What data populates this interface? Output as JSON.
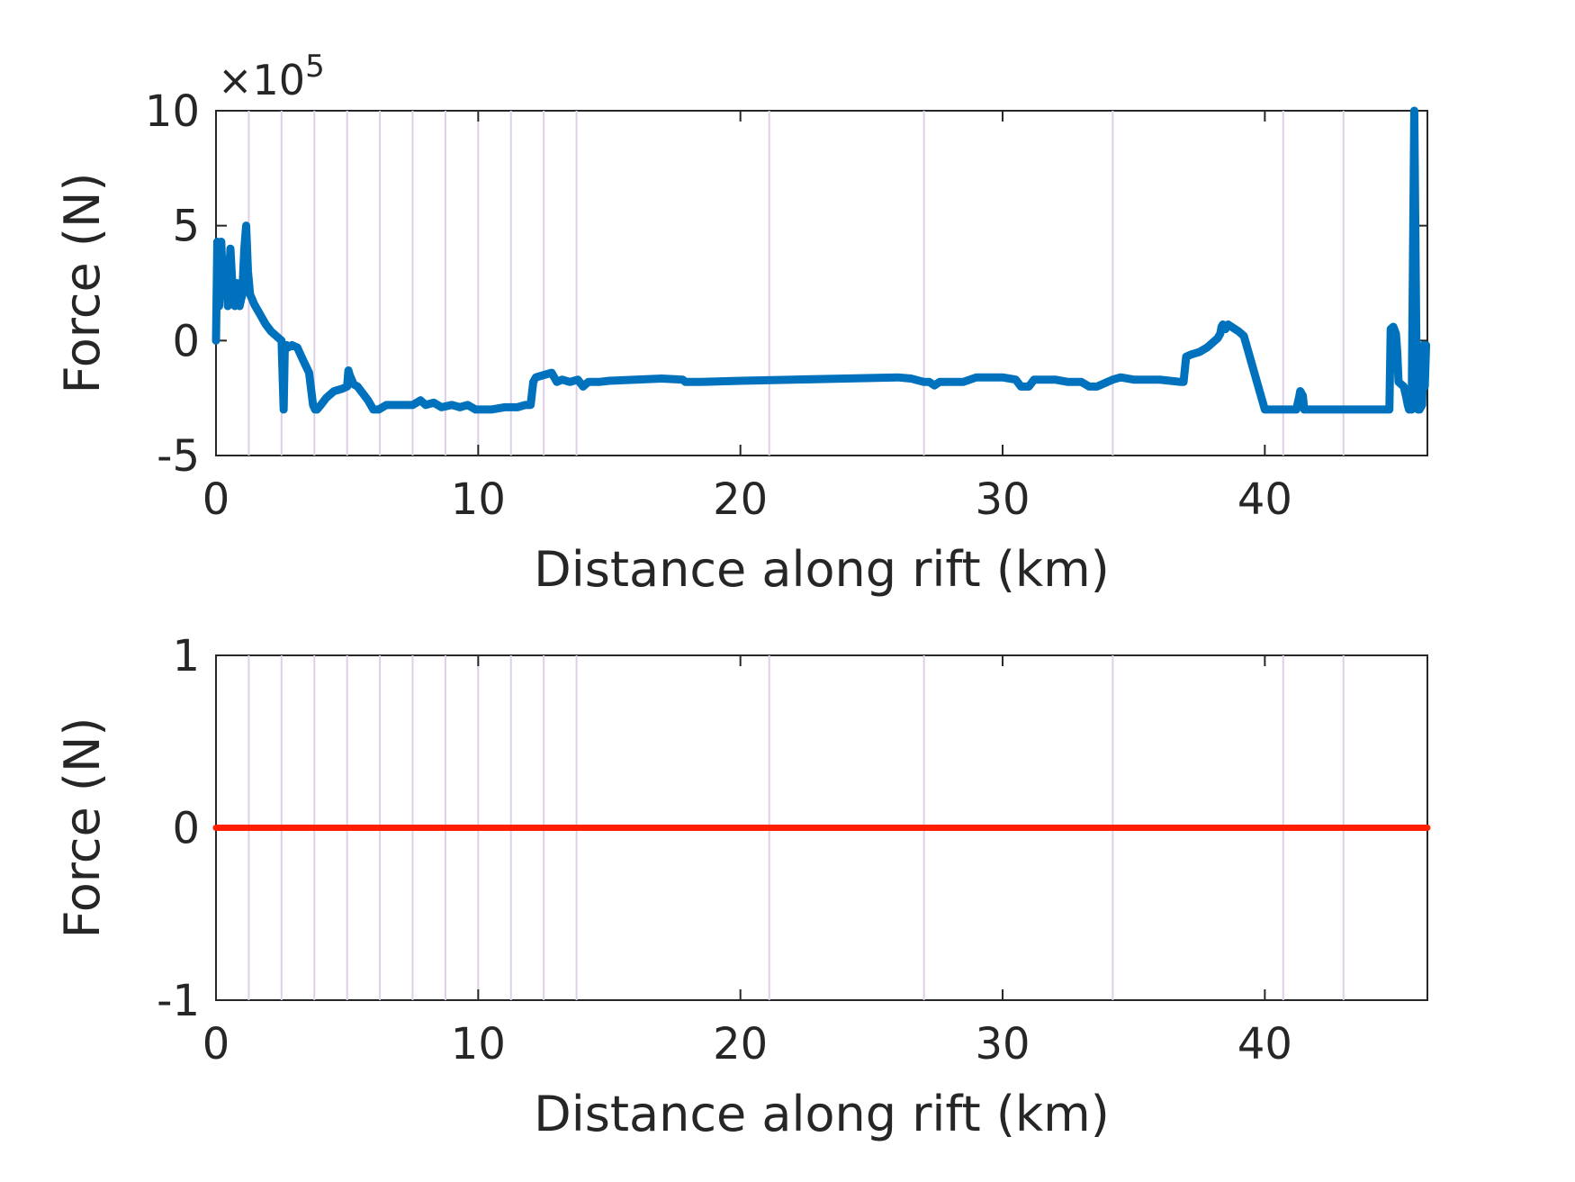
{
  "chart_data": [
    {
      "type": "line",
      "title": "",
      "xlabel": "Distance along rift (km)",
      "ylabel": "Force (N)",
      "y_exponent_label": "×10",
      "y_exponent_power": "5",
      "xlim": [
        0,
        46.2
      ],
      "ylim": [
        -5,
        10
      ],
      "xticks": [
        0,
        10,
        20,
        30,
        40
      ],
      "xtick_labels": [
        "0",
        "10",
        "20",
        "30",
        "40"
      ],
      "yticks": [
        -5,
        0,
        5,
        10
      ],
      "ytick_labels": [
        "-5",
        "0",
        "5",
        "10"
      ],
      "grid": false,
      "vertical_markers_km": [
        1.25,
        2.5,
        3.75,
        5.0,
        6.25,
        7.5,
        8.75,
        10.0,
        11.25,
        12.5,
        13.75,
        21.1,
        27.0,
        34.2,
        40.7,
        43.0
      ],
      "series": [
        {
          "color": "#0072BD",
          "x": [
            0.0,
            0.05,
            0.12,
            0.2,
            0.28,
            0.38,
            0.45,
            0.55,
            0.62,
            0.72,
            0.8,
            0.9,
            1.0,
            1.08,
            1.15,
            1.22,
            1.3,
            1.38,
            1.45,
            1.55,
            1.65,
            1.75,
            1.9,
            2.1,
            2.3,
            2.5,
            2.58,
            2.62,
            2.66,
            2.7,
            2.75,
            2.9,
            3.1,
            3.3,
            3.55,
            3.7,
            3.78,
            3.85,
            4.0,
            4.2,
            4.5,
            4.8,
            5.0,
            5.05,
            5.1,
            5.25,
            5.4,
            5.6,
            5.8,
            6.0,
            6.2,
            6.5,
            7.0,
            7.5,
            7.8,
            8.0,
            8.3,
            8.6,
            9.0,
            9.3,
            9.6,
            9.9,
            10.1,
            10.5,
            11.0,
            11.5,
            11.8,
            12.0,
            12.1,
            12.2,
            12.5,
            12.8,
            13.0,
            13.2,
            13.5,
            13.8,
            14.0,
            14.2,
            14.6,
            15.0,
            16.0,
            17.0,
            17.8,
            17.9,
            18.5,
            20.0,
            22.0,
            24.0,
            26.0,
            26.5,
            27.0,
            27.2,
            27.4,
            27.6,
            28.0,
            28.5,
            29.0,
            29.4,
            30.0,
            30.5,
            30.7,
            31.0,
            31.2,
            31.5,
            32.0,
            32.5,
            33.0,
            33.3,
            33.6,
            34.0,
            34.2,
            34.5,
            35.0,
            36.0,
            36.8,
            36.9,
            37.0,
            37.2,
            37.5,
            37.8,
            38.0,
            38.2,
            38.3,
            38.35,
            38.4,
            38.5,
            38.6,
            39.0,
            39.1,
            39.2,
            40.0,
            41.0,
            41.1,
            41.2,
            41.3,
            41.35,
            41.45,
            41.5,
            42.0,
            43.0,
            44.0,
            44.5,
            44.7,
            44.75,
            44.8,
            44.9,
            45.0,
            45.05,
            45.1,
            45.2,
            45.3,
            45.4,
            45.45,
            45.5,
            45.55,
            45.6,
            45.7,
            45.8,
            45.85,
            45.9,
            46.0,
            46.05,
            46.1,
            46.15
          ],
          "y": [
            0.0,
            4.3,
            1.5,
            4.3,
            2.0,
            3.5,
            1.5,
            4.0,
            2.5,
            1.5,
            2.5,
            1.5,
            2.0,
            4.0,
            5.0,
            3.0,
            2.0,
            1.8,
            1.6,
            1.4,
            1.2,
            1.0,
            0.7,
            0.4,
            0.2,
            0.0,
            -3.0,
            -0.5,
            -0.3,
            -0.2,
            -0.3,
            -0.2,
            -0.3,
            -0.8,
            -1.4,
            -2.8,
            -3.0,
            -3.0,
            -2.8,
            -2.5,
            -2.2,
            -2.1,
            -2.0,
            -1.3,
            -1.5,
            -1.9,
            -2.0,
            -2.3,
            -2.6,
            -3.0,
            -3.0,
            -2.8,
            -2.8,
            -2.8,
            -2.6,
            -2.8,
            -2.7,
            -2.9,
            -2.8,
            -2.9,
            -2.8,
            -3.0,
            -3.0,
            -3.0,
            -2.9,
            -2.9,
            -2.8,
            -2.8,
            -1.8,
            -1.6,
            -1.5,
            -1.4,
            -1.8,
            -1.7,
            -1.8,
            -1.7,
            -2.0,
            -1.8,
            -1.8,
            -1.75,
            -1.7,
            -1.65,
            -1.7,
            -1.8,
            -1.8,
            -1.75,
            -1.7,
            -1.65,
            -1.6,
            -1.65,
            -1.8,
            -1.8,
            -1.95,
            -1.8,
            -1.8,
            -1.8,
            -1.6,
            -1.6,
            -1.6,
            -1.7,
            -2.0,
            -2.0,
            -1.7,
            -1.7,
            -1.7,
            -1.8,
            -1.8,
            -2.0,
            -2.0,
            -1.8,
            -1.7,
            -1.6,
            -1.7,
            -1.7,
            -1.8,
            -1.8,
            -0.7,
            -0.6,
            -0.5,
            -0.3,
            -0.1,
            0.1,
            0.3,
            0.6,
            0.7,
            0.5,
            0.7,
            0.4,
            0.3,
            0.2,
            -3.0,
            -3.0,
            -3.0,
            -3.0,
            -2.5,
            -2.2,
            -2.4,
            -3.0,
            -3.0,
            -3.0,
            -3.0,
            -3.0,
            -3.0,
            -3.0,
            0.5,
            0.6,
            0.3,
            -0.5,
            -1.8,
            -1.9,
            -2.0,
            -2.5,
            -2.8,
            -3.0,
            -2.8,
            -3.0,
            10.0,
            -2.8,
            -3.0,
            -3.0,
            -2.8,
            -0.2,
            -2.0,
            -0.2
          ]
        }
      ]
    },
    {
      "type": "line",
      "title": "",
      "xlabel": "Distance along rift (km)",
      "ylabel": "Force (N)",
      "xlim": [
        0,
        46.2
      ],
      "ylim": [
        -1,
        1
      ],
      "xticks": [
        0,
        10,
        20,
        30,
        40
      ],
      "xtick_labels": [
        "0",
        "10",
        "20",
        "30",
        "40"
      ],
      "yticks": [
        -1,
        0,
        1
      ],
      "ytick_labels": [
        "-1",
        "0",
        "1"
      ],
      "grid": false,
      "vertical_markers_km": [
        1.25,
        2.5,
        3.75,
        5.0,
        6.25,
        7.5,
        8.75,
        10.0,
        11.25,
        12.5,
        13.75,
        21.1,
        27.0,
        34.2,
        40.7,
        43.0
      ],
      "series": [
        {
          "color": "#FF1F00",
          "x": [
            0,
            46.2
          ],
          "y": [
            0,
            0
          ]
        }
      ]
    }
  ]
}
